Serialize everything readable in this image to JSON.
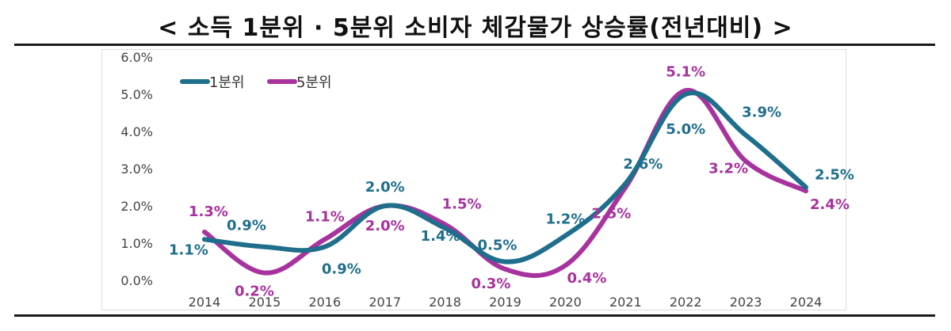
{
  "title": "< 소득 1분위 · 5분위 소비자 체감물가 상승률(전년대비) >",
  "colors": {
    "q1": "#1e6e8c",
    "q5": "#a8329e",
    "axis_text": "#444444"
  },
  "chart_data": {
    "type": "line",
    "title": "< 소득 1분위 · 5분위 소비자 체감물가 상승률(전년대비) >",
    "xlabel": "",
    "ylabel": "",
    "categories": [
      "2014",
      "2015",
      "2016",
      "2017",
      "2018",
      "2019",
      "2020",
      "2021",
      "2022",
      "2023",
      "2024"
    ],
    "ylim": [
      0,
      6
    ],
    "yticks": [
      "0.0%",
      "1.0%",
      "2.0%",
      "3.0%",
      "4.0%",
      "5.0%",
      "6.0%"
    ],
    "legend_position": "top-left",
    "grid": false,
    "series": [
      {
        "name": "1분위",
        "color": "#1e6e8c",
        "values": [
          1.1,
          0.9,
          0.9,
          2.0,
          1.4,
          0.5,
          1.2,
          2.6,
          5.0,
          3.9,
          2.5
        ],
        "labels": [
          "1.1%",
          "0.9%",
          "0.9%",
          "2.0%",
          "1.4%",
          "0.5%",
          "1.2%",
          "2.6%",
          "5.0%",
          "3.9%",
          "2.5%"
        ]
      },
      {
        "name": "5분위",
        "color": "#a8329e",
        "values": [
          1.3,
          0.2,
          1.1,
          2.0,
          1.5,
          0.3,
          0.4,
          2.5,
          5.1,
          3.2,
          2.4
        ],
        "labels": [
          "1.3%",
          "0.2%",
          "1.1%",
          "2.0%",
          "1.5%",
          "0.3%",
          "0.4%",
          "2.5%",
          "5.1%",
          "3.2%",
          "2.4%"
        ]
      }
    ]
  }
}
